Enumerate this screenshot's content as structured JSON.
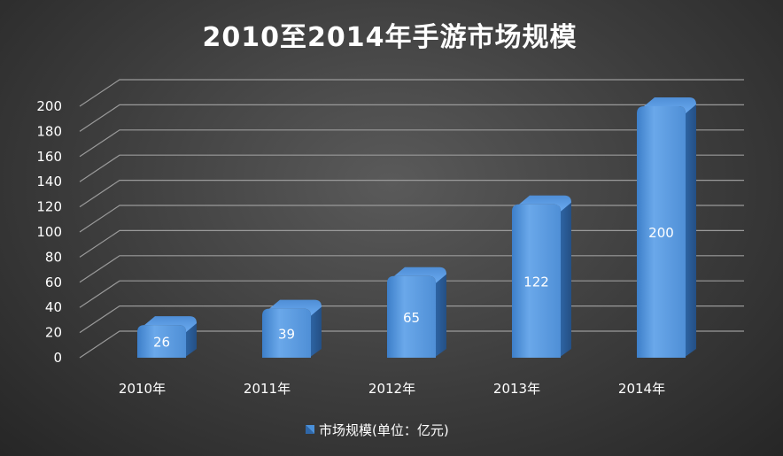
{
  "chart_data": {
    "type": "bar",
    "title": "2010至2014年手游市场规模",
    "categories": [
      "2010年",
      "2011年",
      "2012年",
      "2013年",
      "2014年"
    ],
    "series": [
      {
        "name": "市场规模(单位：亿元)",
        "values": [
          26,
          39,
          65,
          122,
          200
        ],
        "color": "#4a90d9"
      }
    ],
    "yticks": [
      "0",
      "20",
      "40",
      "60",
      "80",
      "100",
      "120",
      "140",
      "160",
      "180",
      "200"
    ],
    "ylim": [
      0,
      200
    ],
    "grid": true,
    "legend_position": "bottom",
    "style": "3d-column"
  }
}
